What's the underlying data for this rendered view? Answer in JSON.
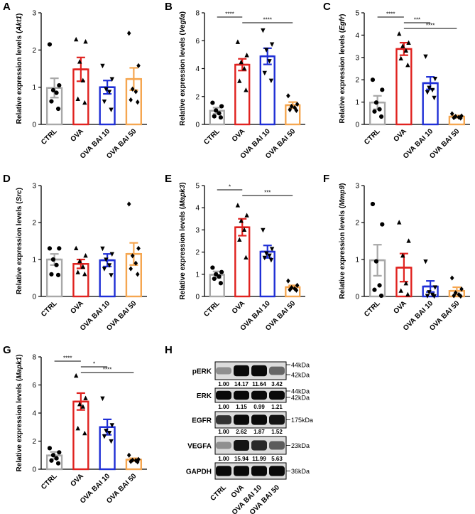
{
  "chart_data": [
    {
      "letter": "A",
      "type": "bar",
      "title": "",
      "ylabel": "Relative expression levels",
      "ylabel_gene": "Akt1",
      "ylim": [
        0,
        3
      ],
      "yticks": [
        0,
        1,
        2,
        3
      ],
      "categories": [
        "CTRL",
        "OVA",
        "OVA BAI 10",
        "OVA BAI 50"
      ],
      "values": [
        0.98,
        1.48,
        1.0,
        1.22
      ],
      "sem": [
        0.26,
        0.32,
        0.18,
        0.3
      ],
      "points": [
        [
          2.15,
          1.05,
          0.92,
          0.85,
          0.62,
          0.42
        ],
        [
          2.28,
          2.22,
          1.68,
          1.18,
          0.68,
          0.58
        ],
        [
          1.58,
          1.22,
          0.95,
          0.88,
          0.62,
          0.4
        ],
        [
          2.45,
          1.58,
          0.95,
          0.88,
          0.66,
          0.6
        ]
      ],
      "sig": []
    },
    {
      "letter": "B",
      "type": "bar",
      "title": "",
      "ylabel": "Relative expression levels",
      "ylabel_gene": "Vegfa",
      "ylim": [
        0,
        8
      ],
      "yticks": [
        0,
        2,
        4,
        6,
        8
      ],
      "categories": [
        "CTRL",
        "OVA",
        "OVA BAI 10",
        "OVA BAI 50"
      ],
      "values": [
        0.98,
        4.28,
        4.88,
        1.38
      ],
      "sem": [
        0.22,
        0.42,
        0.58,
        0.22
      ],
      "points": [
        [
          1.55,
          1.3,
          1.0,
          0.8,
          0.58,
          0.5
        ],
        [
          5.9,
          4.95,
          4.45,
          4.0,
          3.1,
          2.45
        ],
        [
          6.75,
          5.75,
          5.35,
          4.55,
          3.7,
          3.15
        ],
        [
          2.05,
          1.45,
          1.3,
          1.2,
          1.05,
          1.0
        ]
      ],
      "sig": [
        {
          "from": 0,
          "to": 1,
          "label": "****"
        },
        {
          "from": 1,
          "to": 3,
          "label": "****"
        }
      ]
    },
    {
      "letter": "C",
      "type": "bar",
      "title": "",
      "ylabel": "Relative expression levels",
      "ylabel_gene": "Egfr",
      "ylim": [
        0,
        5
      ],
      "yticks": [
        0,
        1,
        2,
        3,
        4,
        5
      ],
      "categories": [
        "CTRL",
        "OVA",
        "OVA BAI 10",
        "OVA BAI 50"
      ],
      "values": [
        0.98,
        3.38,
        1.85,
        0.35
      ],
      "sem": [
        0.3,
        0.28,
        0.28,
        0.05
      ],
      "points": [
        [
          2.0,
          1.55,
          0.98,
          0.68,
          0.58,
          0.35
        ],
        [
          4.05,
          3.65,
          3.5,
          3.3,
          2.95,
          2.65
        ],
        [
          3.05,
          2.05,
          1.65,
          1.55,
          1.45,
          1.2
        ],
        [
          0.48,
          0.38,
          0.36,
          0.32,
          0.3,
          0.28
        ]
      ],
      "sig": [
        {
          "from": 0,
          "to": 1,
          "label": "****"
        },
        {
          "from": 1,
          "to": 2,
          "label": "***"
        },
        {
          "from": 1,
          "to": 3,
          "label": "****"
        }
      ]
    },
    {
      "letter": "D",
      "type": "bar",
      "title": "",
      "ylabel": "Relative expression levels",
      "ylabel_gene": "Src",
      "ylim": [
        0,
        3
      ],
      "yticks": [
        0,
        1,
        2,
        3
      ],
      "categories": [
        "CTRL",
        "OVA",
        "OVA BAI 10",
        "OVA BAI 50"
      ],
      "values": [
        1.0,
        0.88,
        0.98,
        1.15
      ],
      "sem": [
        0.15,
        0.12,
        0.17,
        0.3
      ],
      "points": [
        [
          1.3,
          1.3,
          1.0,
          0.85,
          0.6,
          0.58
        ],
        [
          1.3,
          1.1,
          0.95,
          0.8,
          0.65,
          0.6
        ],
        [
          1.3,
          1.15,
          1.0,
          0.85,
          0.75,
          0.58
        ],
        [
          2.5,
          1.3,
          1.1,
          0.9,
          0.75,
          0.6
        ]
      ],
      "sig": []
    },
    {
      "letter": "E",
      "type": "bar",
      "title": "",
      "ylabel": "Relative expression levels",
      "ylabel_gene": "Mapk3",
      "ylim": [
        0,
        5
      ],
      "yticks": [
        0,
        1,
        2,
        3,
        4,
        5
      ],
      "categories": [
        "CTRL",
        "OVA",
        "OVA BAI 10",
        "OVA BAI 50"
      ],
      "values": [
        0.98,
        3.12,
        2.02,
        0.42
      ],
      "sem": [
        0.15,
        0.38,
        0.28,
        0.08
      ],
      "points": [
        [
          1.3,
          1.1,
          1.0,
          0.9,
          0.8,
          0.6
        ],
        [
          4.1,
          3.65,
          3.4,
          3.0,
          2.55,
          1.75
        ],
        [
          3.0,
          2.15,
          1.95,
          1.85,
          1.75,
          1.65
        ],
        [
          0.7,
          0.5,
          0.4,
          0.35,
          0.3,
          0.28
        ]
      ],
      "sig": [
        {
          "from": 0,
          "to": 1,
          "label": "*"
        },
        {
          "from": 1,
          "to": 3,
          "label": "***"
        }
      ]
    },
    {
      "letter": "F",
      "type": "bar",
      "title": "",
      "ylabel": "Relative expression levels",
      "ylabel_gene": "Mmp9",
      "ylim": [
        0,
        3
      ],
      "yticks": [
        0,
        1,
        2,
        3
      ],
      "categories": [
        "CTRL",
        "OVA",
        "OVA BAI 10",
        "OVA BAI 50"
      ],
      "values": [
        0.98,
        0.78,
        0.27,
        0.15
      ],
      "sem": [
        0.42,
        0.38,
        0.15,
        0.1
      ],
      "points": [
        [
          2.5,
          1.95,
          0.95,
          0.3,
          0.18,
          0.02
        ],
        [
          2.0,
          1.5,
          1.1,
          0.35,
          0.15,
          0.05
        ],
        [
          0.95,
          0.25,
          0.12,
          0.05,
          0.02,
          0.01
        ],
        [
          0.5,
          0.2,
          0.1,
          0.05,
          0.02,
          0.01
        ]
      ],
      "sig": []
    },
    {
      "letter": "G",
      "type": "bar",
      "title": "",
      "ylabel": "Relative expression levels",
      "ylabel_gene": "Mapk1",
      "ylim": [
        0,
        8
      ],
      "yticks": [
        0,
        2,
        4,
        6,
        8
      ],
      "categories": [
        "CTRL",
        "OVA",
        "OVA BAI 10",
        "OVA BAI 50"
      ],
      "values": [
        0.98,
        4.82,
        3.0,
        0.68
      ],
      "sem": [
        0.25,
        0.6,
        0.55,
        0.1
      ],
      "points": [
        [
          1.5,
          1.2,
          1.0,
          0.78,
          0.62,
          0.42
        ],
        [
          6.65,
          5.05,
          4.62,
          4.45,
          2.9,
          2.55
        ],
        [
          5.05,
          3.15,
          2.75,
          2.6,
          2.35,
          2.0
        ],
        [
          1.0,
          0.7,
          0.65,
          0.62,
          0.55,
          0.52
        ]
      ],
      "sig": [
        {
          "from": 0,
          "to": 1,
          "label": "****"
        },
        {
          "from": 1,
          "to": 2,
          "label": "*"
        },
        {
          "from": 1,
          "to": 3,
          "label": "****"
        }
      ]
    }
  ],
  "series_colors": [
    "#a8a8a8",
    "#e0221f",
    "#1f2fd6",
    "#f5a650"
  ],
  "series_markers": [
    "circle",
    "triangle-up",
    "triangle-down",
    "diamond"
  ],
  "western": {
    "letter": "H",
    "rows": [
      {
        "name": "pERK",
        "markers": [
          "44kDa",
          "42kDa"
        ],
        "quant": [
          "1.00",
          "14.17",
          "11.64",
          "3.42"
        ]
      },
      {
        "name": "ERK",
        "markers": [
          "44kDa",
          "42kDa"
        ],
        "quant": [
          "1.00",
          "1.15",
          "0.99",
          "1.21"
        ]
      },
      {
        "name": "EGFR",
        "markers": [
          "175kDa"
        ],
        "quant": [
          "1.00",
          "2.62",
          "1.87",
          "1.52"
        ]
      },
      {
        "name": "VEGFA",
        "markers": [
          "23kDa"
        ],
        "quant": [
          "1.00",
          "15.94",
          "11.99",
          "5.63"
        ]
      },
      {
        "name": "GAPDH",
        "markers": [
          "36kDa"
        ],
        "quant": []
      }
    ],
    "lanes": [
      "CTRL",
      "OVA",
      "OVA BAI 10",
      "OVA BAI 50"
    ]
  }
}
